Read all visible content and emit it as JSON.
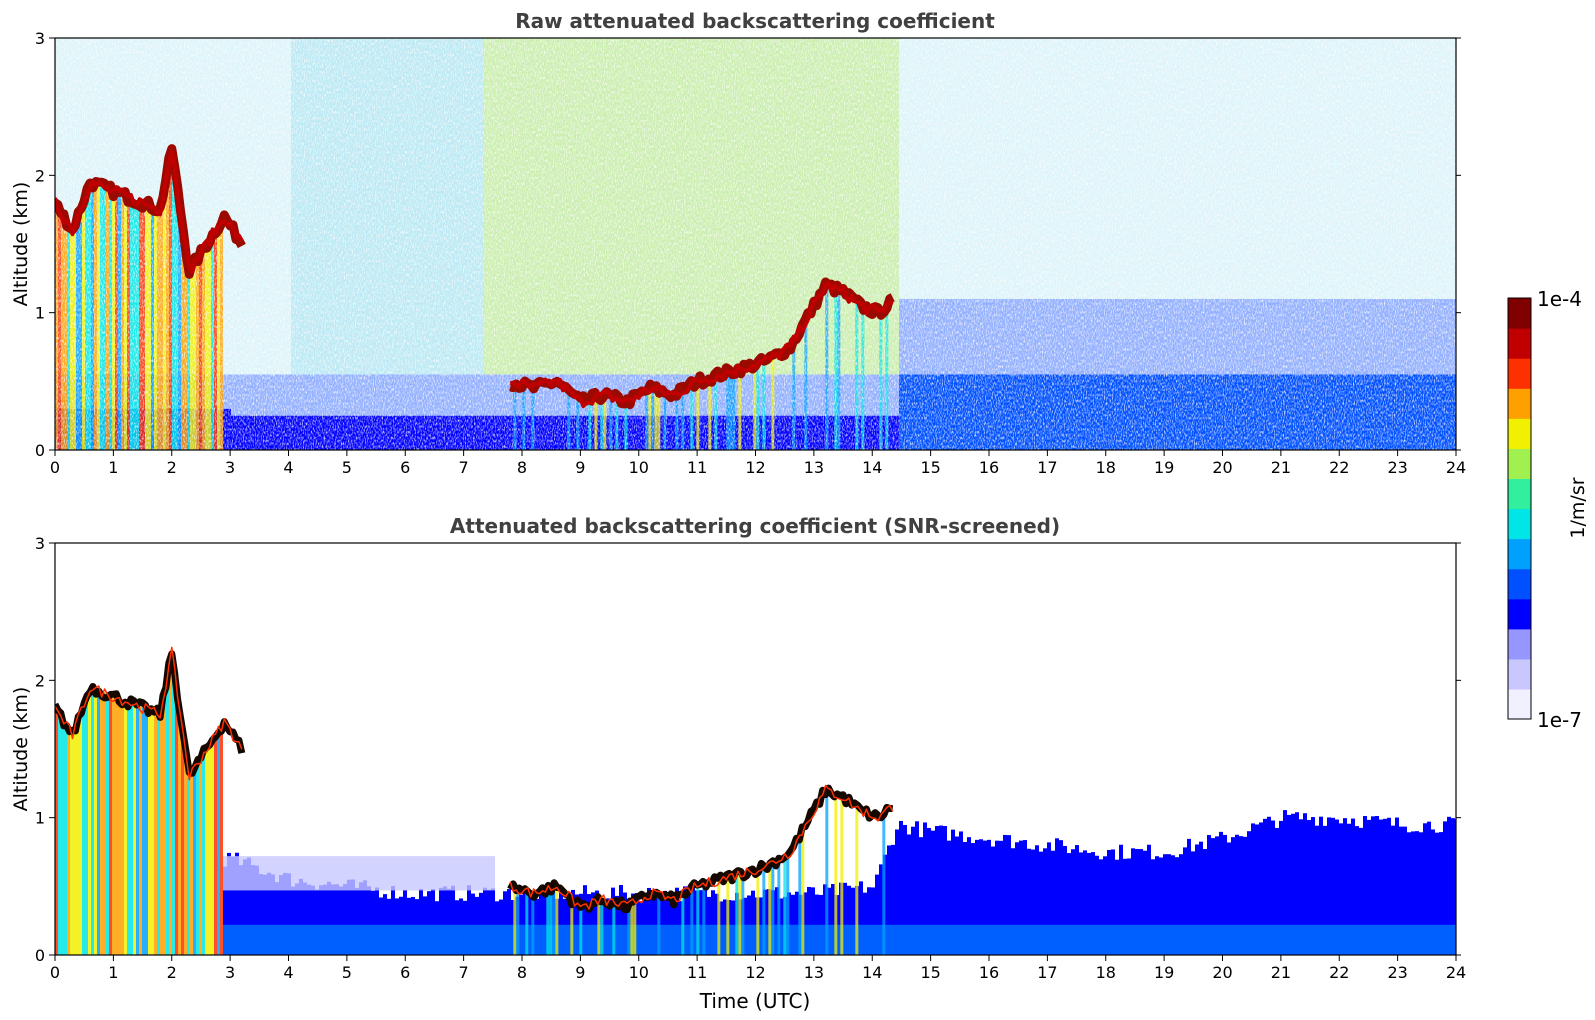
{
  "chart_data": {
    "type": "heatmap",
    "colors": {
      "scale": [
        "#f0f0ff",
        "#c8c8ff",
        "#9696ff",
        "#0000ff",
        "#0050ff",
        "#00a0ff",
        "#00e6e6",
        "#30f0a0",
        "#a0f050",
        "#f0f000",
        "#ffa000",
        "#ff3000",
        "#c00000",
        "#800000"
      ],
      "title": "#404040",
      "cloud_dark": "#140800"
    },
    "colorbar": {
      "min_label": "1e-7",
      "max_label": "1e-4",
      "unit_label": "1/m/sr",
      "scale": "log",
      "range": [
        1e-07,
        0.0001
      ]
    },
    "panels": [
      {
        "title": "Raw attenuated backscattering coefficient",
        "ylabel": "Altitude (km)",
        "xlabel": "",
        "xlim": [
          0,
          24
        ],
        "ylim": [
          0,
          3
        ],
        "xticks": [
          "0",
          "1",
          "2",
          "3",
          "4",
          "5",
          "6",
          "7",
          "8",
          "9",
          "10",
          "11",
          "12",
          "13",
          "14",
          "15",
          "16",
          "17",
          "18",
          "19",
          "20",
          "21",
          "22",
          "23",
          "24"
        ],
        "yticks": [
          "0",
          "1",
          "2",
          "3"
        ]
      },
      {
        "title": "Attenuated backscattering coefficient (SNR-screened)",
        "ylabel": "Altitude (km)",
        "xlabel": "Time (UTC)",
        "xlim": [
          0,
          24
        ],
        "ylim": [
          0,
          3
        ],
        "xticks": [
          "0",
          "1",
          "2",
          "3",
          "4",
          "5",
          "6",
          "7",
          "8",
          "9",
          "10",
          "11",
          "12",
          "13",
          "14",
          "15",
          "16",
          "17",
          "18",
          "19",
          "20",
          "21",
          "22",
          "23",
          "24"
        ],
        "yticks": [
          "0",
          "1",
          "2",
          "3"
        ]
      }
    ],
    "cloud_layer_km": {
      "time_utc": [
        0,
        0.3,
        0.6,
        0.9,
        1.2,
        1.5,
        1.8,
        2.0,
        2.3,
        2.6,
        2.9,
        3.2,
        7.8,
        8.2,
        8.6,
        9.0,
        9.4,
        9.8,
        10.2,
        10.6,
        11.0,
        11.4,
        11.8,
        12.2,
        12.6,
        13.0,
        13.2,
        13.5,
        13.8,
        14.1,
        14.4
      ],
      "altitude": [
        1.8,
        1.6,
        1.95,
        1.9,
        1.85,
        1.8,
        1.75,
        2.2,
        1.3,
        1.5,
        1.7,
        1.5,
        0.5,
        0.45,
        0.5,
        0.35,
        0.4,
        0.35,
        0.45,
        0.4,
        0.5,
        0.55,
        0.6,
        0.65,
        0.75,
        1.05,
        1.2,
        1.15,
        1.05,
        1.0,
        1.1
      ]
    },
    "boundary_layer_top_km": {
      "time_utc": [
        3,
        4,
        5,
        6,
        7,
        8,
        13,
        14,
        14.4,
        15,
        16,
        17,
        18,
        19,
        20,
        21,
        22,
        23,
        24
      ],
      "altitude": [
        0.7,
        0.55,
        0.5,
        0.45,
        0.45,
        0.45,
        0.45,
        0.5,
        0.95,
        0.9,
        0.85,
        0.8,
        0.75,
        0.75,
        0.85,
        1.0,
        1.0,
        0.95,
        0.95
      ]
    }
  }
}
